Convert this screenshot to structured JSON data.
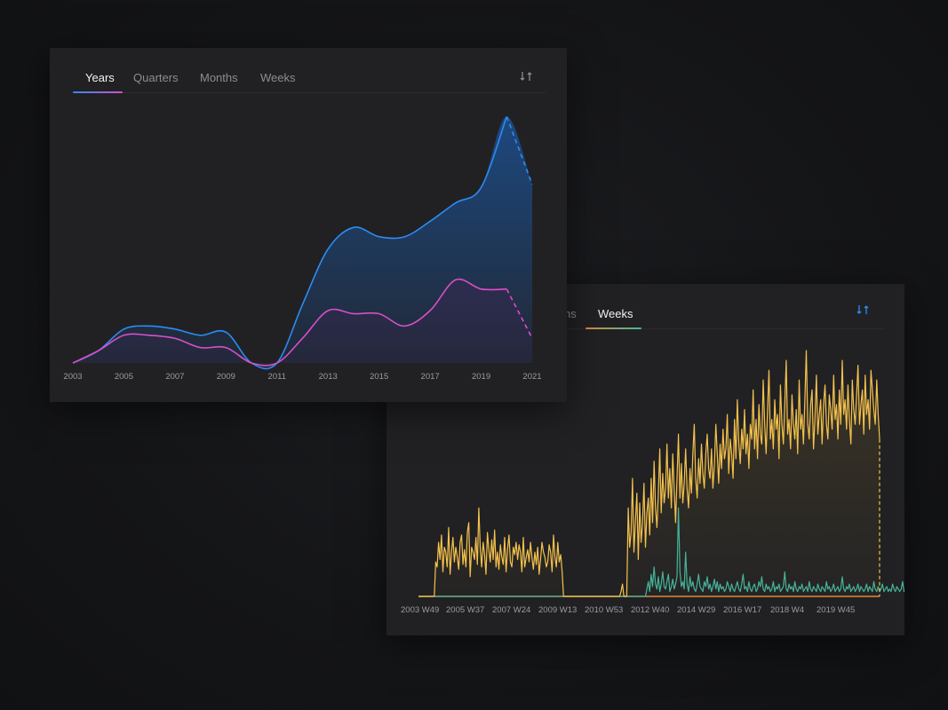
{
  "colors": {
    "years_series_1": "#2b8cf2",
    "years_series_2": "#d94fc8",
    "weeks_series_1": "#f5c24c",
    "weeks_series_2": "#46b39a",
    "weeks_baseline": "#e08a3a",
    "tab_underline_years": [
      "#2b8cf2",
      "#d94fc8"
    ],
    "tab_underline_weeks": [
      "#e08a3a",
      "#46b39a"
    ]
  },
  "front_card": {
    "tabs": [
      {
        "label": "Years",
        "active": true
      },
      {
        "label": "Quarters",
        "active": false
      },
      {
        "label": "Months",
        "active": false
      },
      {
        "label": "Weeks",
        "active": false
      }
    ],
    "swap_icon": "swap-arrows-icon"
  },
  "back_card": {
    "tabs": [
      {
        "label": "ns",
        "active": false
      },
      {
        "label": "Weeks",
        "active": true
      }
    ],
    "swap_icon": "swap-arrows-icon"
  },
  "chart_data": [
    {
      "type": "area",
      "categories": [
        "2003",
        "2004",
        "2005",
        "2006",
        "2007",
        "2008",
        "2009",
        "2010",
        "2011",
        "2012",
        "2013",
        "2014",
        "2015",
        "2016",
        "2017",
        "2018",
        "2019",
        "2020",
        "2021"
      ],
      "tick_labels": [
        "2003",
        "2005",
        "2007",
        "2009",
        "2011",
        "2013",
        "2015",
        "2017",
        "2019",
        "2021"
      ],
      "series": [
        {
          "values": [
            0,
            4,
            11,
            12,
            11,
            9,
            10,
            0,
            0,
            19,
            37,
            44,
            41,
            41,
            46,
            52,
            57,
            80,
            58
          ],
          "projected_from_index": 17
        },
        {
          "values": [
            0,
            4,
            9,
            9,
            8,
            5,
            5,
            0,
            0,
            8,
            17,
            16,
            16,
            12,
            17,
            27,
            24,
            24,
            8
          ],
          "projected_from_index": 17
        }
      ],
      "ylim": [
        0,
        85
      ],
      "grid": false,
      "legend": "none"
    },
    {
      "type": "area",
      "x_range": [
        "2003 W49",
        "2021 W52"
      ],
      "tick_labels": [
        "2003 W49",
        "2005 W37",
        "2007 W24",
        "2009 W13",
        "2010 W53",
        "2012 W40",
        "2014 W29",
        "2016 W17",
        "2018 W4",
        "2019 W45"
      ],
      "series": [
        {
          "values": [
            0,
            0,
            0,
            0,
            0,
            0,
            0,
            0,
            0,
            0,
            0,
            0,
            14,
            12,
            22,
            15,
            25,
            10,
            20,
            18,
            12,
            28,
            9,
            18,
            24,
            14,
            20,
            16,
            11,
            22,
            25,
            13,
            19,
            12,
            26,
            30,
            8,
            20,
            18,
            15,
            24,
            13,
            36,
            20,
            12,
            22,
            17,
            9,
            26,
            19,
            14,
            23,
            15,
            27,
            12,
            18,
            11,
            21,
            16,
            13,
            24,
            10,
            19,
            25,
            14,
            12,
            20,
            17,
            22,
            15,
            21,
            18,
            10,
            24,
            12,
            16,
            19,
            14,
            22,
            16,
            11,
            18,
            13,
            20,
            9,
            15,
            22,
            18,
            16,
            12,
            14,
            21,
            18,
            10,
            25,
            16,
            12,
            22,
            14,
            17,
            10,
            0,
            0,
            0,
            0,
            0,
            0,
            0,
            0,
            0,
            0,
            0,
            0,
            0,
            0,
            0,
            0,
            0,
            0,
            0,
            0,
            0,
            0,
            0,
            0,
            0,
            0,
            0,
            0,
            0,
            0,
            0,
            0,
            0,
            0,
            0,
            0,
            0,
            0,
            0,
            0,
            2,
            5,
            0,
            0,
            0,
            36,
            20,
            26,
            48,
            18,
            30,
            42,
            15,
            38,
            22,
            30,
            46,
            20,
            34,
            40,
            25,
            48,
            30,
            55,
            36,
            28,
            42,
            60,
            34,
            50,
            38,
            44,
            62,
            40,
            52,
            36,
            58,
            44,
            30,
            48,
            66,
            40,
            54,
            38,
            46,
            60,
            44,
            36,
            52,
            42,
            58,
            70,
            48,
            40,
            56,
            46,
            62,
            50,
            44,
            58,
            66,
            52,
            48,
            60,
            44,
            54,
            70,
            58,
            46,
            62,
            52,
            68,
            56,
            60,
            74,
            50,
            64,
            58,
            48,
            72,
            56,
            80,
            62,
            54,
            68,
            60,
            76,
            58,
            66,
            52,
            70,
            64,
            84,
            60,
            72,
            56,
            78,
            66,
            62,
            88,
            70,
            58,
            76,
            92,
            64,
            72,
            60,
            80,
            68,
            74,
            56,
            86,
            70,
            62,
            78,
            96,
            66,
            72,
            60,
            82,
            70,
            64,
            76,
            58,
            88,
            68,
            74,
            62,
            80,
            100,
            70,
            64,
            78,
            84,
            60,
            72,
            90,
            66,
            74,
            80,
            62,
            78,
            86,
            70,
            64,
            82,
            76,
            68,
            90,
            72,
            78,
            64,
            84,
            70,
            96,
            74,
            80,
            68,
            86,
            72,
            62,
            88,
            76,
            70,
            82,
            94,
            70,
            78,
            84,
            66,
            90,
            74,
            80,
            68,
            92,
            84,
            76,
            70,
            88,
            74,
            64
          ],
          "projected_from_index": 345
        },
        {
          "values": [
            0,
            0,
            0,
            0,
            0,
            0,
            0,
            0,
            0,
            0,
            0,
            0,
            0,
            0,
            0,
            0,
            0,
            0,
            0,
            0,
            0,
            0,
            0,
            0,
            0,
            0,
            0,
            0,
            0,
            0,
            0,
            0,
            0,
            0,
            0,
            0,
            0,
            0,
            0,
            0,
            0,
            0,
            0,
            0,
            0,
            0,
            0,
            0,
            0,
            0,
            0,
            0,
            0,
            0,
            0,
            0,
            0,
            0,
            0,
            0,
            0,
            0,
            0,
            0,
            0,
            0,
            0,
            0,
            0,
            0,
            0,
            0,
            0,
            0,
            0,
            0,
            0,
            0,
            0,
            0,
            0,
            0,
            0,
            0,
            0,
            0,
            0,
            0,
            0,
            0,
            0,
            0,
            0,
            0,
            0,
            0,
            0,
            0,
            0,
            0,
            0,
            0,
            0,
            0,
            0,
            0,
            0,
            0,
            0,
            0,
            0,
            0,
            0,
            0,
            0,
            0,
            0,
            0,
            0,
            0,
            0,
            0,
            0,
            0,
            0,
            0,
            0,
            0,
            0,
            0,
            0,
            0,
            0,
            0,
            0,
            0,
            0,
            0,
            0,
            0,
            0,
            0,
            0,
            0,
            0,
            0,
            0,
            0,
            0,
            0,
            0,
            0,
            0,
            0,
            0,
            0,
            0,
            0,
            0,
            3,
            6,
            2,
            9,
            4,
            12,
            5,
            3,
            8,
            2,
            5,
            10,
            4,
            3,
            6,
            9,
            2,
            4,
            7,
            3,
            5,
            8,
            36,
            10,
            4,
            6,
            3,
            18,
            5,
            2,
            8,
            4,
            6,
            3,
            2,
            5,
            9,
            4,
            3,
            2,
            6,
            4,
            8,
            3,
            5,
            2,
            4,
            7,
            3,
            6,
            2,
            5,
            3,
            4,
            2,
            3,
            6,
            4,
            2,
            5,
            3,
            2,
            4,
            6,
            3,
            2,
            5,
            9,
            3,
            4,
            2,
            6,
            3,
            2,
            4,
            5,
            2,
            3,
            6,
            4,
            8,
            3,
            2,
            5,
            3,
            4,
            2,
            3,
            6,
            2,
            4,
            3,
            5,
            2,
            3,
            4,
            10,
            3,
            2,
            5,
            3,
            4,
            2,
            6,
            3,
            2,
            4,
            3,
            5,
            2,
            3,
            4,
            2,
            6,
            3,
            2,
            4,
            3,
            2,
            5,
            3,
            2,
            4,
            3,
            2,
            6,
            3,
            4,
            2,
            3,
            5,
            2,
            3,
            4,
            2,
            3,
            8,
            3,
            2,
            4,
            3,
            5,
            2,
            3,
            4,
            2,
            3,
            5,
            2,
            4,
            3,
            2,
            3,
            5,
            2,
            4,
            3,
            2,
            6,
            3,
            2,
            4,
            2,
            3,
            5,
            2,
            3,
            4,
            2,
            3,
            2,
            5,
            3,
            2,
            4,
            3,
            2,
            3,
            6,
            2,
            3,
            4,
            8,
            16,
            3,
            2,
            5,
            3,
            2,
            4,
            3,
            2,
            3,
            5,
            2,
            4,
            3,
            6,
            2,
            3,
            4,
            2,
            3,
            5,
            2
          ],
          "projected_from_index": 345
        }
      ],
      "ylim": [
        0,
        100
      ],
      "grid": false,
      "legend": "none"
    }
  ]
}
